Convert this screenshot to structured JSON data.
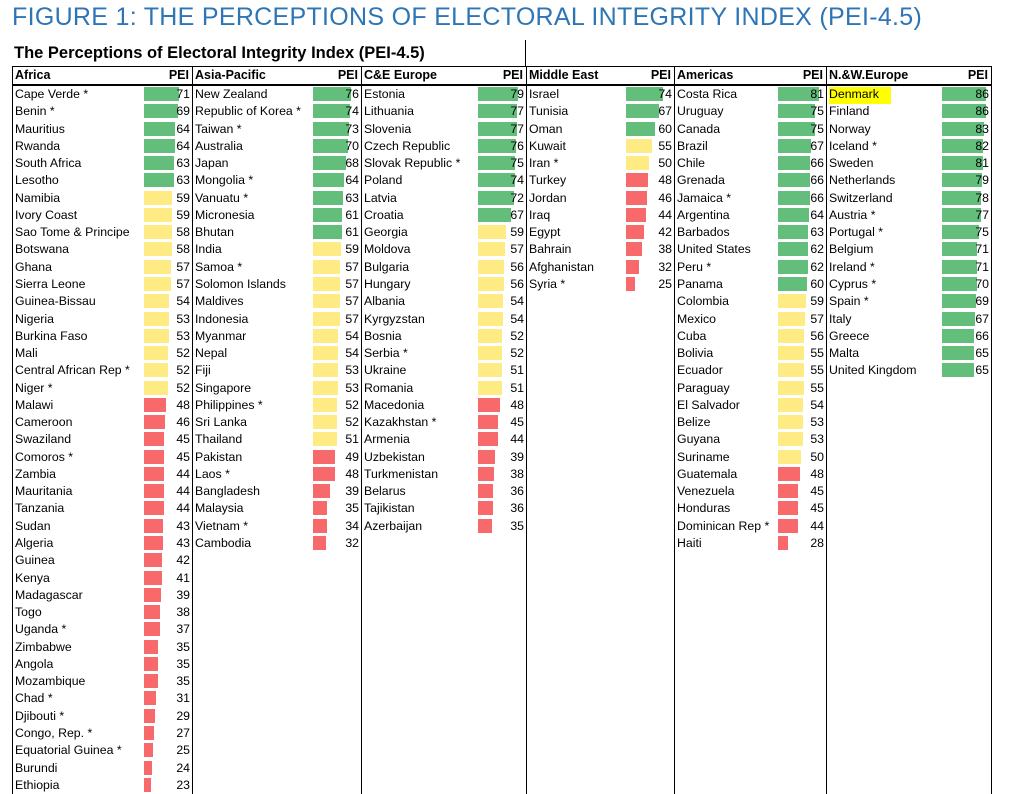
{
  "figure_title": "FIGURE 1: THE PERCEPTIONS OF ELECTORAL INTEGRITY INDEX (PEI-4.5)",
  "chart_data": {
    "type": "table",
    "title": "The Perceptions of Electoral Integrity Index (PEI-4.5)",
    "value_label": "PEI",
    "colors": {
      "high": "#63BE7B",
      "mid": "#FFEB84",
      "low": "#F8696B",
      "highlight": "#FFFF00"
    },
    "thresholds": {
      "high": 60,
      "mid": 50
    },
    "highlighted": "Denmark",
    "regions": [
      {
        "name": "Africa",
        "rows": [
          [
            "Cape Verde *",
            71
          ],
          [
            "Benin *",
            69
          ],
          [
            "Mauritius",
            64
          ],
          [
            "Rwanda",
            64
          ],
          [
            "South Africa",
            63
          ],
          [
            "Lesotho",
            63
          ],
          [
            "Namibia",
            59
          ],
          [
            "Ivory Coast",
            59
          ],
          [
            "Sao Tome & Principe",
            58
          ],
          [
            "Botswana",
            58
          ],
          [
            "Ghana",
            57
          ],
          [
            "Sierra Leone",
            57
          ],
          [
            "Guinea-Bissau",
            54
          ],
          [
            "Nigeria",
            53
          ],
          [
            "Burkina Faso",
            53
          ],
          [
            "Mali",
            52
          ],
          [
            "Central African Rep *",
            52
          ],
          [
            "Niger *",
            52
          ],
          [
            "Malawi",
            48
          ],
          [
            "Cameroon",
            46
          ],
          [
            "Swaziland",
            45
          ],
          [
            "Comoros *",
            45
          ],
          [
            "Zambia",
            44
          ],
          [
            "Mauritania",
            44
          ],
          [
            "Tanzania",
            44
          ],
          [
            "Sudan",
            43
          ],
          [
            "Algeria",
            43
          ],
          [
            "Guinea",
            42
          ],
          [
            "Kenya",
            41
          ],
          [
            "Madagascar",
            39
          ],
          [
            "Togo",
            38
          ],
          [
            "Uganda *",
            37
          ],
          [
            "Zimbabwe",
            35
          ],
          [
            "Angola",
            35
          ],
          [
            "Mozambique",
            35
          ],
          [
            "Chad *",
            31
          ],
          [
            "Djibouti *",
            29
          ],
          [
            "Congo, Rep. *",
            27
          ],
          [
            "Equatorial Guinea *",
            25
          ],
          [
            "Burundi",
            24
          ],
          [
            "Ethiopia",
            23
          ]
        ]
      },
      {
        "name": "Asia-Pacific",
        "rows": [
          [
            "New Zealand",
            76
          ],
          [
            "Republic of Korea *",
            74
          ],
          [
            "Taiwan *",
            73
          ],
          [
            "Australia",
            70
          ],
          [
            "Japan",
            68
          ],
          [
            "Mongolia *",
            64
          ],
          [
            "Vanuatu *",
            63
          ],
          [
            "Micronesia",
            61
          ],
          [
            "Bhutan",
            61
          ],
          [
            "India",
            59
          ],
          [
            "Samoa *",
            57
          ],
          [
            "Solomon Islands",
            57
          ],
          [
            "Maldives",
            57
          ],
          [
            "Indonesia",
            57
          ],
          [
            "Myanmar",
            54
          ],
          [
            "Nepal",
            54
          ],
          [
            "Fiji",
            53
          ],
          [
            "Singapore",
            53
          ],
          [
            "Philippines *",
            52
          ],
          [
            "Sri Lanka",
            52
          ],
          [
            "Thailand",
            51
          ],
          [
            "Pakistan",
            49
          ],
          [
            "Laos *",
            48
          ],
          [
            "Bangladesh",
            39
          ],
          [
            "Malaysia",
            35
          ],
          [
            "Vietnam *",
            34
          ],
          [
            "Cambodia",
            32
          ]
        ]
      },
      {
        "name": "C&E Europe",
        "rows": [
          [
            "Estonia",
            79
          ],
          [
            "Lithuania",
            77
          ],
          [
            "Slovenia",
            77
          ],
          [
            "Czech Republic",
            76
          ],
          [
            "Slovak Republic *",
            75
          ],
          [
            "Poland",
            74
          ],
          [
            "Latvia",
            72
          ],
          [
            "Croatia",
            67
          ],
          [
            "Georgia",
            59
          ],
          [
            "Moldova",
            57
          ],
          [
            "Bulgaria",
            56
          ],
          [
            "Hungary",
            56
          ],
          [
            "Albania",
            54
          ],
          [
            "Kyrgyzstan",
            54
          ],
          [
            "Bosnia",
            52
          ],
          [
            "Serbia *",
            52
          ],
          [
            "Ukraine",
            51
          ],
          [
            "Romania",
            51
          ],
          [
            "Macedonia",
            48
          ],
          [
            "Kazakhstan *",
            45
          ],
          [
            "Armenia",
            44
          ],
          [
            "Uzbekistan",
            39
          ],
          [
            "Turkmenistan",
            38
          ],
          [
            "Belarus",
            36
          ],
          [
            "Tajikistan",
            36
          ],
          [
            "Azerbaijan",
            35
          ]
        ]
      },
      {
        "name": "Middle East",
        "rows": [
          [
            "Israel",
            74
          ],
          [
            "Tunisia",
            67
          ],
          [
            "Oman",
            60
          ],
          [
            "Kuwait",
            55
          ],
          [
            "Iran *",
            50
          ],
          [
            "Turkey",
            48
          ],
          [
            "Jordan",
            46
          ],
          [
            "Iraq",
            44
          ],
          [
            "Egypt",
            42
          ],
          [
            "Bahrain",
            38
          ],
          [
            "Afghanistan",
            32
          ],
          [
            "Syria *",
            25
          ]
        ]
      },
      {
        "name": "Americas",
        "rows": [
          [
            "Costa Rica",
            81
          ],
          [
            "Uruguay",
            75
          ],
          [
            "Canada",
            75
          ],
          [
            "Brazil",
            67
          ],
          [
            "Chile",
            66
          ],
          [
            "Grenada",
            66
          ],
          [
            "Jamaica *",
            66
          ],
          [
            "Argentina",
            64
          ],
          [
            "Barbados",
            63
          ],
          [
            "United States",
            62
          ],
          [
            "Peru *",
            62
          ],
          [
            "Panama",
            60
          ],
          [
            "Colombia",
            59
          ],
          [
            "Mexico",
            57
          ],
          [
            "Cuba",
            56
          ],
          [
            "Bolivia",
            55
          ],
          [
            "Ecuador",
            55
          ],
          [
            "Paraguay",
            55
          ],
          [
            "El Salvador",
            54
          ],
          [
            "Belize",
            53
          ],
          [
            "Guyana",
            53
          ],
          [
            "Suriname",
            50
          ],
          [
            "Guatemala",
            48
          ],
          [
            "Venezuela",
            45
          ],
          [
            "Honduras",
            45
          ],
          [
            "Dominican Rep *",
            44
          ],
          [
            "Haiti",
            28
          ]
        ]
      },
      {
        "name": "N.&W.Europe",
        "rows": [
          [
            "Denmark",
            86
          ],
          [
            "Finland",
            86
          ],
          [
            "Norway",
            83
          ],
          [
            "Iceland *",
            82
          ],
          [
            "Sweden",
            81
          ],
          [
            "Netherlands",
            79
          ],
          [
            "Switzerland",
            78
          ],
          [
            "Austria *",
            77
          ],
          [
            "Portugal *",
            75
          ],
          [
            "Belgium",
            71
          ],
          [
            "Ireland *",
            71
          ],
          [
            "Cyprus *",
            70
          ],
          [
            "Spain *",
            69
          ],
          [
            "Italy",
            67
          ],
          [
            "Greece",
            66
          ],
          [
            "Malta",
            65
          ],
          [
            "United Kingdom",
            65
          ]
        ]
      }
    ]
  }
}
